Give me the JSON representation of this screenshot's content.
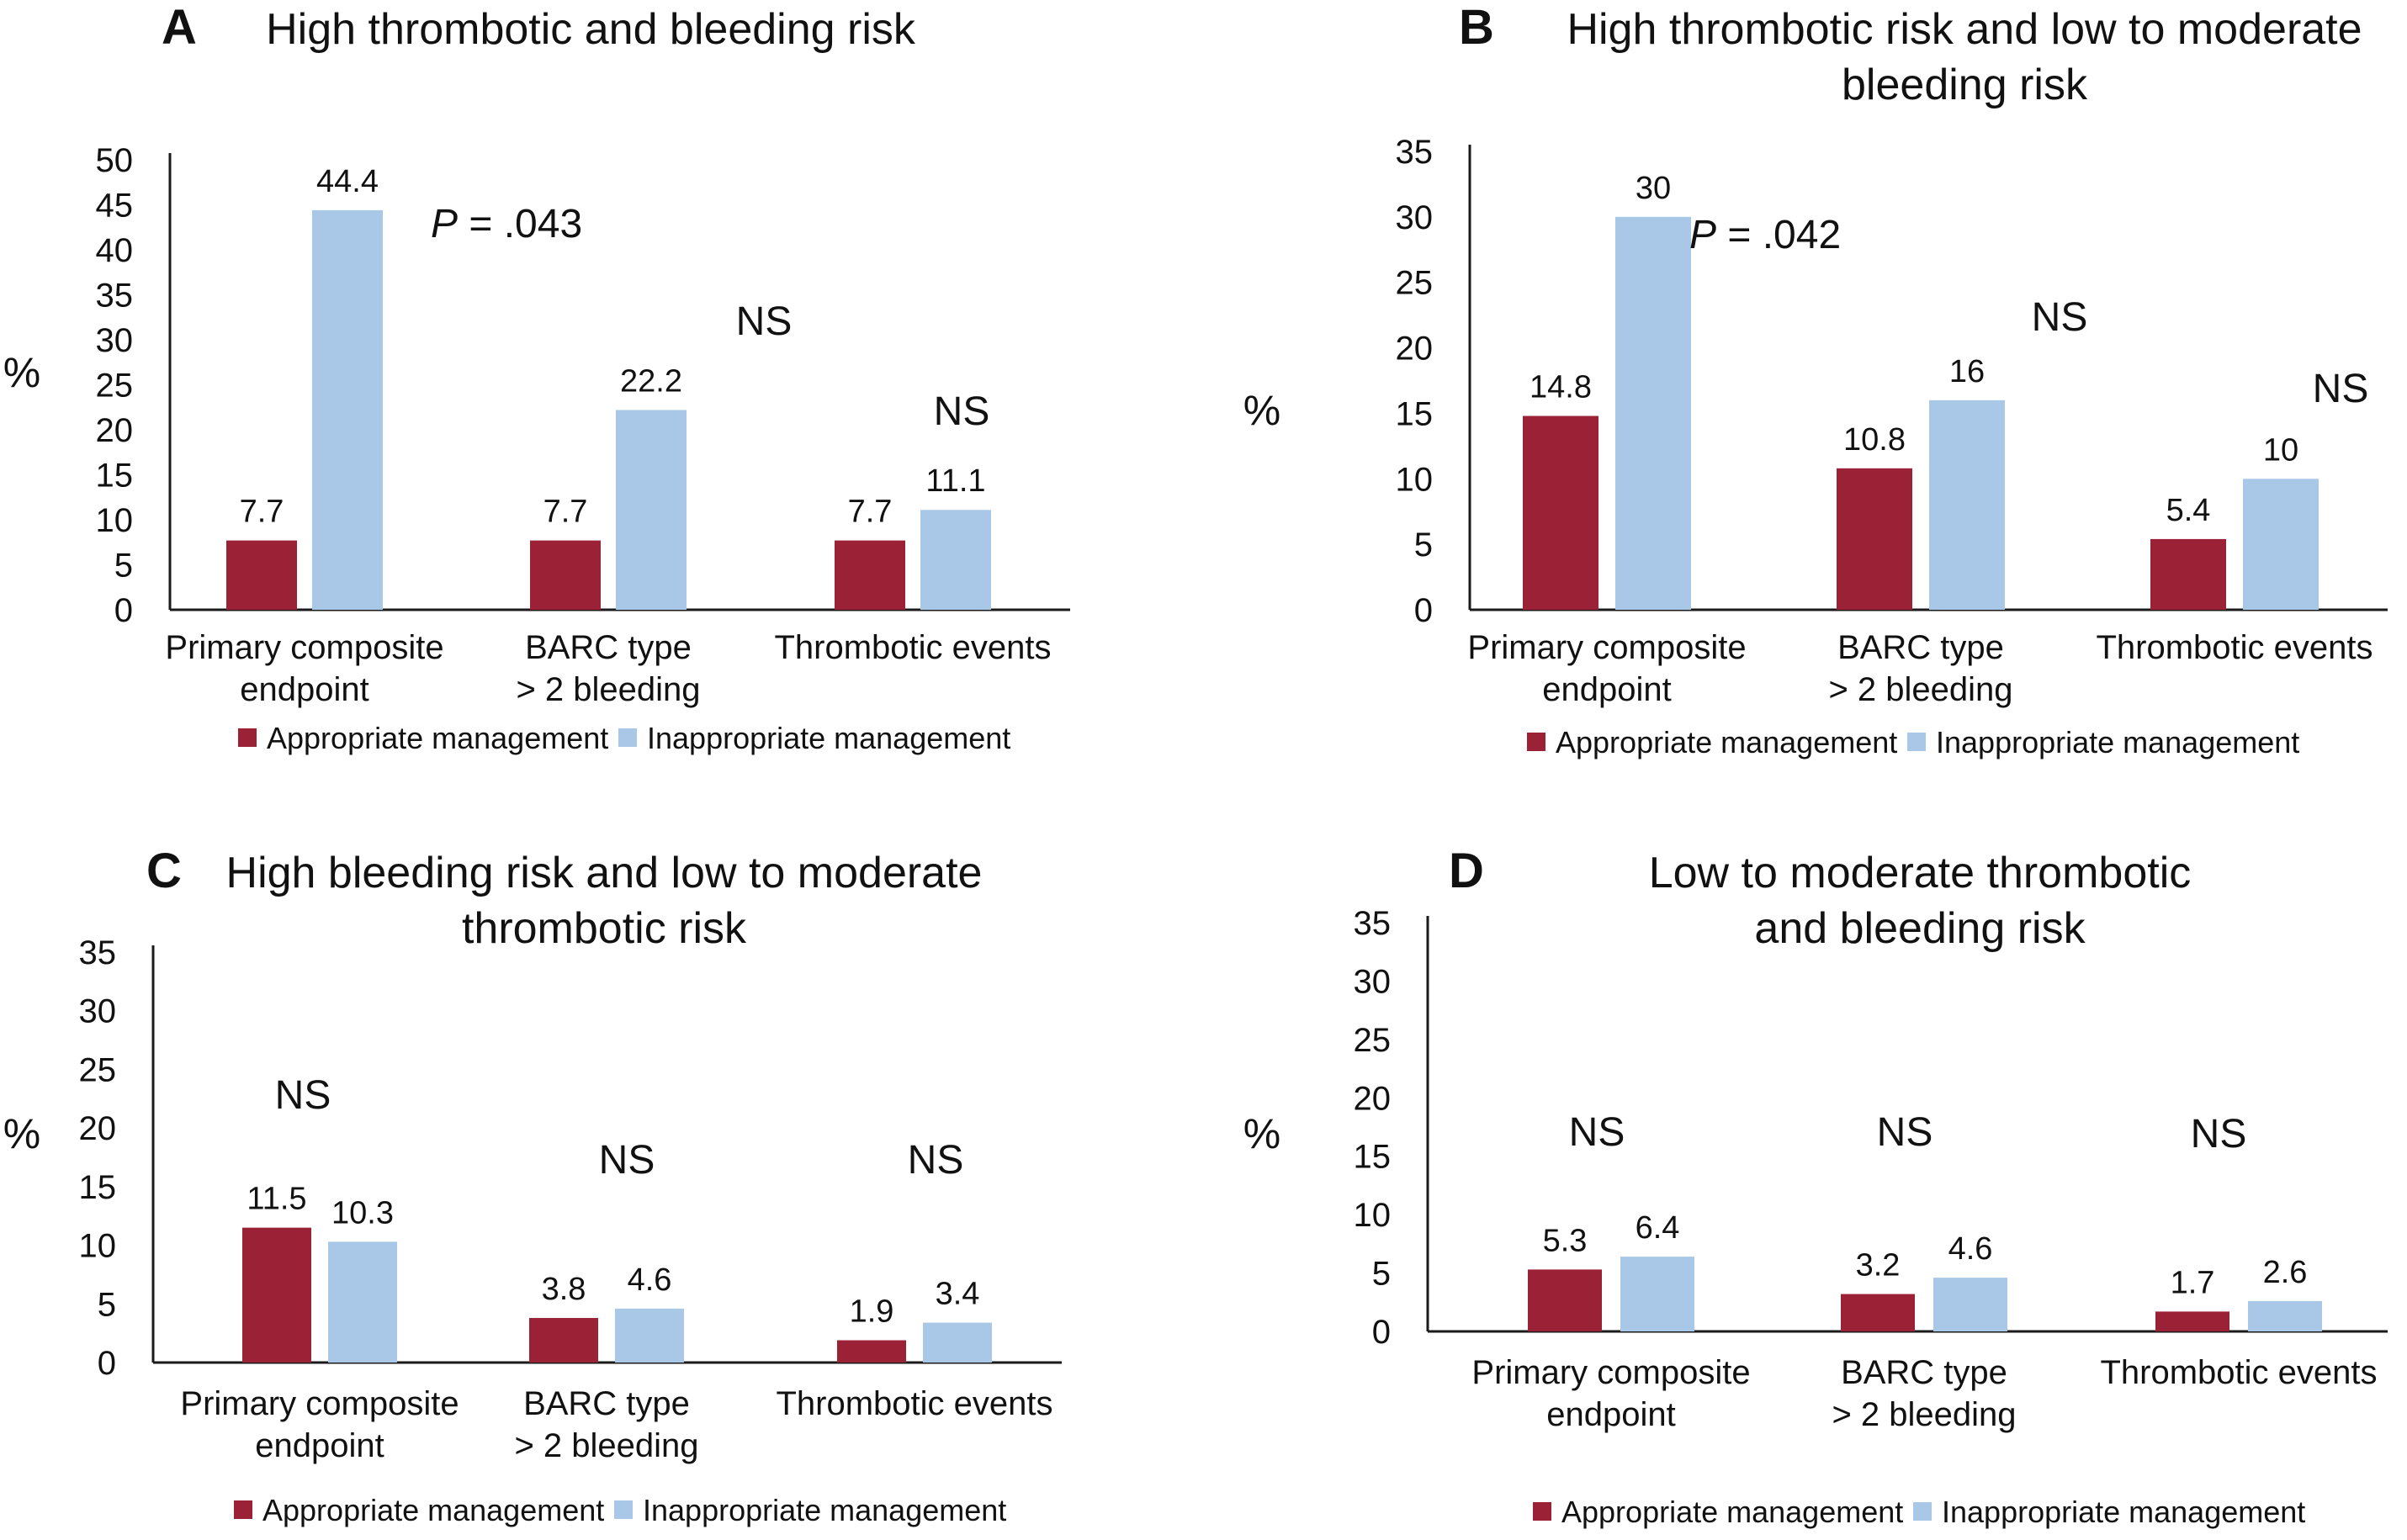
{
  "colors": {
    "appropriate": "#9B2236",
    "inappropriate": "#A9C8E8",
    "axis": "#1a1a1a"
  },
  "legend": {
    "appropriate": "Appropriate management",
    "inappropriate": "Inappropriate management"
  },
  "chart_data": [
    {
      "panel": "A",
      "type": "bar",
      "title_lines": [
        "High thrombotic and bleeding risk"
      ],
      "ylabel": "%",
      "ylim": [
        0,
        50
      ],
      "yticks": [
        0,
        5,
        10,
        15,
        20,
        25,
        30,
        35,
        40,
        45,
        50
      ],
      "categories": [
        [
          "Primary composite",
          "endpoint"
        ],
        [
          "BARC type",
          "> 2 bleeding"
        ],
        [
          "Thrombotic events"
        ]
      ],
      "series": [
        {
          "name": "Appropriate management",
          "values": [
            7.7,
            7.7,
            7.7
          ],
          "labels": [
            "7.7",
            "7.7",
            "7.7"
          ]
        },
        {
          "name": "Inappropriate management",
          "values": [
            44.4,
            22.2,
            11.1
          ],
          "labels": [
            "44.4",
            "22.2",
            "11.1"
          ]
        }
      ],
      "significance": [
        {
          "italic": "P",
          "rest": " = .043"
        },
        {
          "italic": "",
          "rest": "NS"
        },
        {
          "italic": "",
          "rest": "NS"
        }
      ]
    },
    {
      "panel": "B",
      "type": "bar",
      "title_lines": [
        "High thrombotic risk and low to moderate",
        "bleeding risk"
      ],
      "ylabel": "%",
      "ylim": [
        0,
        35
      ],
      "yticks": [
        0,
        5,
        10,
        15,
        20,
        25,
        30,
        35
      ],
      "categories": [
        [
          "Primary composite",
          "endpoint"
        ],
        [
          "BARC type",
          "> 2 bleeding"
        ],
        [
          "Thrombotic events"
        ]
      ],
      "series": [
        {
          "name": "Appropriate management",
          "values": [
            14.8,
            10.8,
            5.4
          ],
          "labels": [
            "14.8",
            "10.8",
            "5.4"
          ]
        },
        {
          "name": "Inappropriate management",
          "values": [
            30,
            16,
            10
          ],
          "labels": [
            "30",
            "16",
            "10"
          ]
        }
      ],
      "significance": [
        {
          "italic": "P",
          "rest": " = .042"
        },
        {
          "italic": "",
          "rest": "NS"
        },
        {
          "italic": "",
          "rest": "NS"
        }
      ]
    },
    {
      "panel": "C",
      "type": "bar",
      "title_lines": [
        "High bleeding risk and low to moderate",
        "thrombotic risk"
      ],
      "ylabel": "%",
      "ylim": [
        0,
        35
      ],
      "yticks": [
        0,
        5,
        10,
        15,
        20,
        25,
        30,
        35
      ],
      "categories": [
        [
          "Primary composite",
          "endpoint"
        ],
        [
          "BARC type",
          "> 2 bleeding"
        ],
        [
          "Thrombotic events"
        ]
      ],
      "series": [
        {
          "name": "Appropriate management",
          "values": [
            11.5,
            3.8,
            1.9
          ],
          "labels": [
            "11.5",
            "3.8",
            "1.9"
          ]
        },
        {
          "name": "Inappropriate management",
          "values": [
            10.3,
            4.6,
            3.4
          ],
          "labels": [
            "10.3",
            "4.6",
            "3.4"
          ]
        }
      ],
      "significance": [
        {
          "italic": "",
          "rest": "NS"
        },
        {
          "italic": "",
          "rest": "NS"
        },
        {
          "italic": "",
          "rest": "NS"
        }
      ]
    },
    {
      "panel": "D",
      "type": "bar",
      "title_lines": [
        "Low to moderate thrombotic",
        "and bleeding risk"
      ],
      "ylabel": "%",
      "ylim": [
        0,
        35
      ],
      "yticks": [
        0,
        5,
        10,
        15,
        20,
        25,
        30,
        35
      ],
      "categories": [
        [
          "Primary composite",
          "endpoint"
        ],
        [
          "BARC type",
          "> 2 bleeding"
        ],
        [
          "Thrombotic events"
        ]
      ],
      "series": [
        {
          "name": "Appropriate management",
          "values": [
            5.3,
            3.2,
            1.7
          ],
          "labels": [
            "5.3",
            "3.2",
            "1.7"
          ]
        },
        {
          "name": "Inappropriate management",
          "values": [
            6.4,
            4.6,
            2.6
          ],
          "labels": [
            "6.4",
            "4.6",
            "2.6"
          ]
        }
      ],
      "significance": [
        {
          "italic": "",
          "rest": "NS"
        },
        {
          "italic": "",
          "rest": "NS"
        },
        {
          "italic": "",
          "rest": "NS"
        }
      ]
    }
  ]
}
